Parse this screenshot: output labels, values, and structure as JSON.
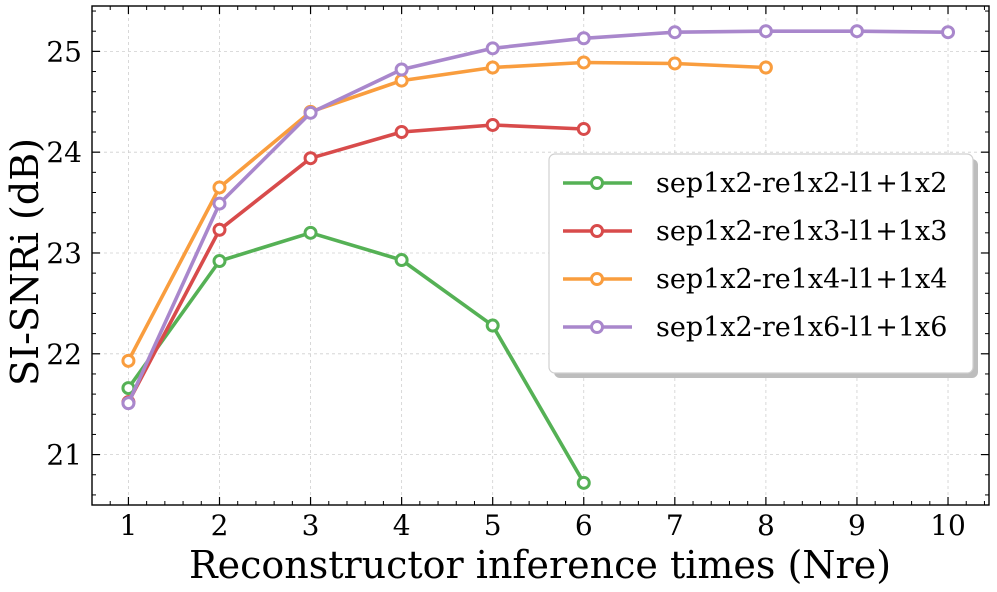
{
  "chart_data": {
    "type": "line",
    "title": "",
    "xlabel": "Reconstructor inference times (Nre)",
    "ylabel": "SI-SNRi (dB)",
    "xlim": [
      0.6,
      10.45
    ],
    "ylim": [
      20.5,
      25.45
    ],
    "xticks": [
      1,
      2,
      3,
      4,
      5,
      6,
      7,
      8,
      9,
      10
    ],
    "yticks": [
      21,
      22,
      23,
      24,
      25
    ],
    "grid": true,
    "legend_position": "center-right",
    "series": [
      {
        "name": "sep1x2-re1x2-l1+1x2",
        "color": "#55b155",
        "x": [
          1,
          2,
          3,
          4,
          5,
          6
        ],
        "values": [
          21.66,
          22.92,
          23.2,
          22.93,
          22.28,
          20.72
        ]
      },
      {
        "name": "sep1x2-re1x3-l1+1x3",
        "color": "#d84b4b",
        "x": [
          1,
          2,
          3,
          4,
          5,
          6
        ],
        "values": [
          21.52,
          23.23,
          23.94,
          24.2,
          24.27,
          24.23
        ]
      },
      {
        "name": "sep1x2-re1x4-l1+1x4",
        "color": "#f99d3e",
        "x": [
          1,
          2,
          3,
          4,
          5,
          6,
          7,
          8
        ],
        "values": [
          21.93,
          23.65,
          24.4,
          24.71,
          24.84,
          24.89,
          24.88,
          24.84
        ]
      },
      {
        "name": "sep1x2-re1x6-l1+1x6",
        "color": "#a987cc",
        "x": [
          1,
          2,
          3,
          4,
          5,
          6,
          7,
          8,
          9,
          10
        ],
        "values": [
          21.51,
          23.49,
          24.39,
          24.82,
          25.03,
          25.13,
          25.19,
          25.2,
          25.2,
          25.19
        ]
      }
    ]
  }
}
